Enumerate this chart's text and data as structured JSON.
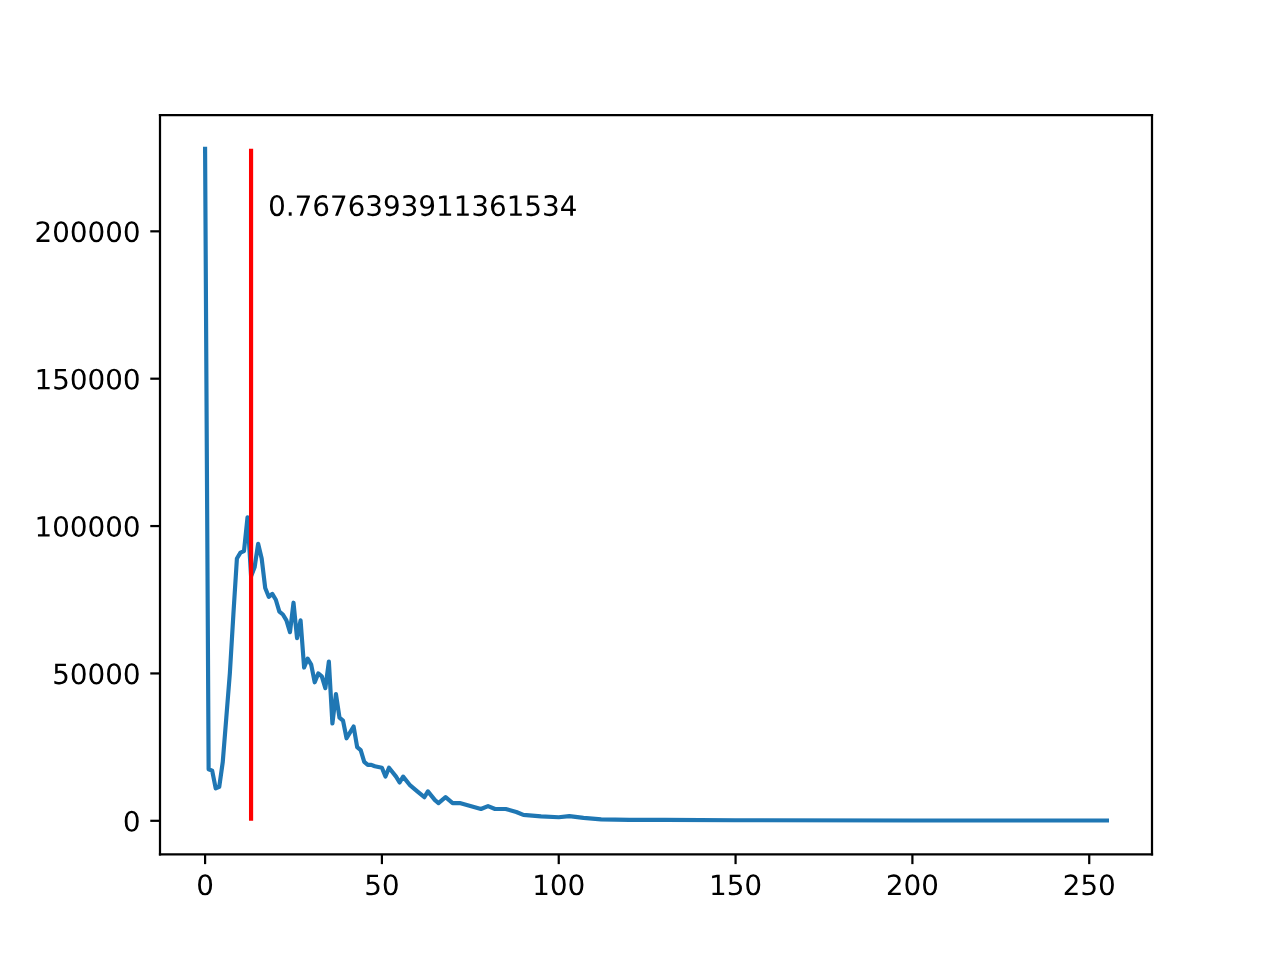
{
  "chart_data": {
    "type": "line",
    "x": [
      0,
      1,
      2,
      3,
      4,
      5,
      6,
      7,
      8,
      9,
      10,
      11,
      12,
      13,
      14,
      15,
      16,
      17,
      18,
      19,
      20,
      21,
      22,
      23,
      24,
      25,
      26,
      27,
      28,
      29,
      30,
      31,
      32,
      33,
      34,
      35,
      36,
      37,
      38,
      39,
      40,
      41,
      42,
      43,
      44,
      45,
      46,
      47,
      48,
      50,
      51,
      52,
      54,
      55,
      56,
      58,
      60,
      62,
      63,
      65,
      66,
      68,
      70,
      72,
      75,
      78,
      80,
      82,
      85,
      88,
      90,
      95,
      100,
      103,
      107,
      112,
      120,
      130,
      150,
      200,
      255
    ],
    "series": [
      {
        "color": "#1f77b4",
        "values": [
          228000,
          17500,
          17000,
          11000,
          11500,
          20000,
          35000,
          50000,
          70000,
          89000,
          91000,
          91500,
          103000,
          83000,
          86000,
          94000,
          89000,
          79000,
          76000,
          77000,
          75000,
          71000,
          70000,
          68000,
          64000,
          74000,
          62000,
          68000,
          52000,
          55000,
          53000,
          47000,
          50000,
          49000,
          45000,
          54000,
          33000,
          43000,
          35000,
          34000,
          28000,
          30000,
          32000,
          25000,
          24000,
          20000,
          19000,
          19000,
          18500,
          18000,
          15000,
          18000,
          15000,
          13000,
          15000,
          12000,
          10000,
          8000,
          10000,
          7000,
          6000,
          8000,
          6000,
          6000,
          5000,
          4000,
          5000,
          4000,
          4000,
          3000,
          2000,
          1500,
          1200,
          1600,
          1000,
          500,
          300,
          300,
          200,
          100,
          100
        ]
      }
    ],
    "ref_lines": [
      {
        "axis": "x",
        "value": 13,
        "color": "#ff0000"
      }
    ],
    "annotations": [
      "0.7676393911361534"
    ],
    "xlim": [
      -12.75,
      267.75
    ],
    "ylim": [
      -11400,
      239400
    ],
    "xticks": [
      0,
      50,
      100,
      150,
      200,
      250
    ],
    "yticks": [
      0,
      50000,
      100000,
      150000,
      200000
    ],
    "grid": false,
    "legend": false
  }
}
